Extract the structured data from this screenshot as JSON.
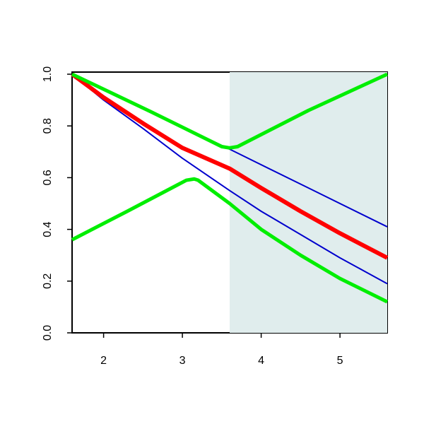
{
  "chart_data": {
    "type": "line",
    "xlim": [
      1.6,
      5.6
    ],
    "ylim": [
      0,
      1
    ],
    "xticks": [
      2,
      3,
      4,
      5
    ],
    "yticks": [
      {
        "value": 0,
        "label": "0.0"
      },
      0.2,
      0.4,
      0.6,
      0.8,
      {
        "value": 1,
        "label": "1.0"
      }
    ],
    "shade": {
      "xrange": [
        3.6,
        5.6
      ],
      "color": "#e0eded"
    },
    "series": [
      {
        "color": "#0000cd",
        "width": 2,
        "x": [
          1.6,
          2.6,
          3.6,
          4.6,
          5.6
        ],
        "values": [
          1.0,
          0.855,
          0.71,
          0.56,
          0.41
        ]
      },
      {
        "color": "#0000cd",
        "width": 2,
        "x": [
          1.6,
          2,
          2.5,
          3,
          3.6,
          4,
          4.5,
          5,
          5.6
        ],
        "values": [
          1.0,
          0.9,
          0.79,
          0.675,
          0.55,
          0.47,
          0.38,
          0.29,
          0.19
        ]
      },
      {
        "color": "#ff0000",
        "width": 6,
        "x": [
          1.6,
          2,
          2.5,
          3,
          3.6,
          4,
          4.5,
          5,
          5.6
        ],
        "values": [
          1.0,
          0.91,
          0.81,
          0.715,
          0.635,
          0.56,
          0.47,
          0.385,
          0.29
        ]
      },
      {
        "color": "#00ee00",
        "width": 5,
        "x": [
          1.6,
          2.6,
          3.5,
          3.6,
          3.7,
          4.6,
          5.6
        ],
        "values": [
          1.0,
          0.855,
          0.72,
          0.715,
          0.72,
          0.86,
          1.0
        ]
      },
      {
        "color": "#00ee00",
        "width": 5,
        "x": [
          1.6,
          2.3,
          3.05,
          3.15,
          3.2,
          3.6,
          4,
          4.5,
          5,
          5.6
        ],
        "values": [
          0.36,
          0.47,
          0.59,
          0.595,
          0.59,
          0.5,
          0.4,
          0.3,
          0.21,
          0.12
        ]
      }
    ]
  }
}
